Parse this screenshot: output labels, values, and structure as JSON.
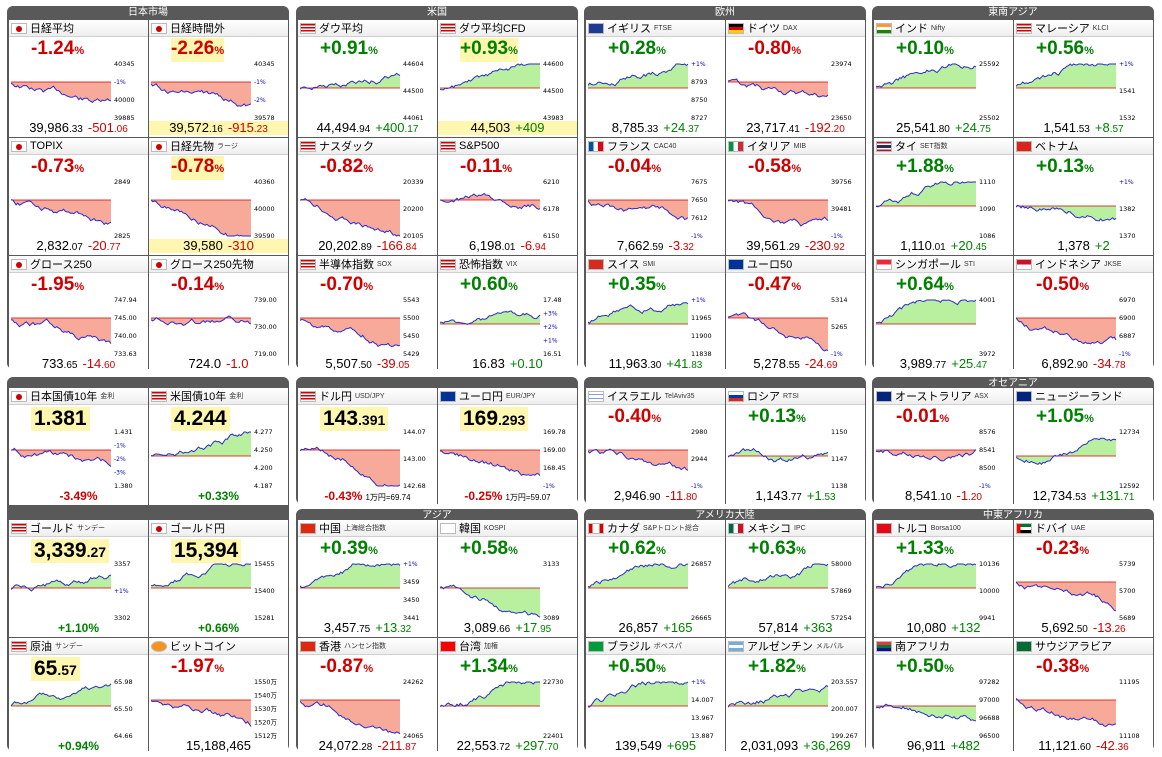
{
  "groups": [
    "日本市場",
    "米国",
    "欧州",
    "東南アジア",
    "オセアニア",
    "アジア",
    "アメリカ大陸",
    "中東アフリカ"
  ],
  "colors": {
    "up": "#008000",
    "down": "#d10000",
    "frame": "#595959",
    "area_up": "#b8f0a0",
    "area_down": "#f7a99a",
    "line": "#2a2ad0"
  },
  "cells": [
    {
      "name": "日経平均",
      "sub": "",
      "flag": "jp",
      "pct": "-1.24",
      "price_main": "39,986",
      "price_dec": ".33",
      "change_main": "-501",
      "change_dec": ".06",
      "dir": "down",
      "ticks": [
        "40345",
        "-1%",
        "40000",
        "39885"
      ],
      "trend": "down",
      "hl": false
    },
    {
      "name": "日経時間外",
      "sub": "",
      "flag": "jp",
      "pct": "-2.26",
      "price_main": "39,572",
      "price_dec": ".16",
      "change_main": "-915",
      "change_dec": ".23",
      "dir": "down",
      "ticks": [
        "40345",
        "-1%",
        "-2%",
        "39578"
      ],
      "trend": "down",
      "hl": true
    },
    {
      "name": "ダウ平均",
      "sub": "",
      "flag": "us",
      "pct": "+0.91",
      "price_main": "44,494",
      "price_dec": ".94",
      "change_main": "+400",
      "change_dec": ".17",
      "dir": "up",
      "ticks": [
        "44604",
        "44500",
        "44061"
      ],
      "trend": "up",
      "hl": false
    },
    {
      "name": "ダウ平均CFD",
      "sub": "",
      "flag": "us",
      "pct": "+0.93",
      "price_main": "44,503",
      "price_dec": "",
      "change_main": "+409",
      "change_dec": "",
      "dir": "up",
      "ticks": [
        "44600",
        "44500",
        "43983"
      ],
      "trend": "up",
      "hl": true
    },
    {
      "name": "イギリス",
      "sub": "FTSE",
      "flag": "uk",
      "pct": "+0.28",
      "price_main": "8,785",
      "price_dec": ".33",
      "change_main": "+24",
      "change_dec": ".37",
      "dir": "up",
      "ticks": [
        "+1%",
        "8793",
        "8750",
        "8727"
      ],
      "trend": "up",
      "hl": false
    },
    {
      "name": "ドイツ",
      "sub": "DAX",
      "flag": "de",
      "pct": "-0.80",
      "price_main": "23,717",
      "price_dec": ".41",
      "change_main": "-192",
      "change_dec": ".20",
      "dir": "down",
      "ticks": [
        "23974",
        "23650"
      ],
      "trend": "down",
      "hl": false
    },
    {
      "name": "インド",
      "sub": "Nifty",
      "flag": "in",
      "pct": "+0.10",
      "price_main": "25,541",
      "price_dec": ".80",
      "change_main": "+24",
      "change_dec": ".75",
      "dir": "up",
      "ticks": [
        "25592",
        "25502"
      ],
      "trend": "up",
      "hl": false
    },
    {
      "name": "マレーシア",
      "sub": "KLCI",
      "flag": "my",
      "pct": "+0.56",
      "price_main": "1,541",
      "price_dec": ".53",
      "change_main": "+8",
      "change_dec": ".57",
      "dir": "up",
      "ticks": [
        "+1%",
        "1541",
        "1532"
      ],
      "trend": "up",
      "hl": false
    },
    {
      "name": "TOPIX",
      "sub": "",
      "flag": "jp",
      "pct": "-0.73",
      "price_main": "2,832",
      "price_dec": ".07",
      "change_main": "-20",
      "change_dec": ".77",
      "dir": "down",
      "ticks": [
        "2849",
        "2825"
      ],
      "trend": "down",
      "hl": false
    },
    {
      "name": "日経先物",
      "sub": "ラージ",
      "flag": "jp",
      "pct": "-0.78",
      "price_main": "39,580",
      "price_dec": "",
      "change_main": "-310",
      "change_dec": "",
      "dir": "down",
      "ticks": [
        "40360",
        "40000",
        "39590"
      ],
      "trend": "down",
      "hl": true
    },
    {
      "name": "ナスダック",
      "sub": "",
      "flag": "us",
      "pct": "-0.82",
      "price_main": "20,202",
      "price_dec": ".89",
      "change_main": "-166",
      "change_dec": ".84",
      "dir": "down",
      "ticks": [
        "20339",
        "20200",
        "20105"
      ],
      "trend": "down",
      "hl": false
    },
    {
      "name": "S&P500",
      "sub": "",
      "flag": "us",
      "pct": "-0.11",
      "price_main": "6,198",
      "price_dec": ".01",
      "change_main": "-6",
      "change_dec": ".94",
      "dir": "down",
      "ticks": [
        "6210",
        "6178",
        "6150"
      ],
      "trend": "flat",
      "hl": false
    },
    {
      "name": "フランス",
      "sub": "CAC40",
      "flag": "fr",
      "pct": "-0.04",
      "price_main": "7,662",
      "price_dec": ".59",
      "change_main": "-3",
      "change_dec": ".32",
      "dir": "down",
      "ticks": [
        "7675",
        "7650",
        "7612",
        "-1%"
      ],
      "trend": "down",
      "hl": false
    },
    {
      "name": "イタリア",
      "sub": "MIB",
      "flag": "it",
      "pct": "-0.58",
      "price_main": "39,561",
      "price_dec": ".29",
      "change_main": "-230",
      "change_dec": ".92",
      "dir": "down",
      "ticks": [
        "39756",
        "39481",
        "-1%"
      ],
      "trend": "down",
      "hl": false
    },
    {
      "name": "タイ",
      "sub": "SET指数",
      "flag": "th",
      "pct": "+1.88",
      "price_main": "1,110",
      "price_dec": ".01",
      "change_main": "+20",
      "change_dec": ".45",
      "dir": "up",
      "ticks": [
        "1110",
        "1090",
        "1086"
      ],
      "trend": "up",
      "hl": false
    },
    {
      "name": "ベトナム",
      "sub": "",
      "flag": "vn",
      "pct": "+0.13",
      "price_main": "1,378",
      "price_dec": "",
      "change_main": "+2",
      "change_dec": "",
      "dir": "up",
      "ticks": [
        "+1%",
        "1382",
        "1370"
      ],
      "trend": "flat",
      "hl": false
    },
    {
      "name": "グロース250",
      "sub": "",
      "flag": "jp",
      "pct": "-1.95",
      "price_main": "733",
      "price_dec": ".65",
      "change_main": "-14",
      "change_dec": ".60",
      "dir": "down",
      "ticks": [
        "747.94",
        "745.00",
        "740.00",
        "733.63"
      ],
      "trend": "down",
      "hl": false
    },
    {
      "name": "グロース250先物",
      "sub": "",
      "flag": "jp",
      "pct": "-0.14",
      "price_main": "724.0",
      "price_dec": "",
      "change_main": "-1.0",
      "change_dec": "",
      "dir": "down",
      "ticks": [
        "739.00",
        "730.00",
        "719.00"
      ],
      "trend": "flat",
      "hl": false
    },
    {
      "name": "半導体指数",
      "sub": "SOX",
      "flag": "us",
      "pct": "-0.70",
      "price_main": "5,507",
      "price_dec": ".50",
      "change_main": "-39",
      "change_dec": ".05",
      "dir": "down",
      "ticks": [
        "5543",
        "5500",
        "5450",
        "5429"
      ],
      "trend": "down",
      "hl": false
    },
    {
      "name": "恐怖指数",
      "sub": "VIX",
      "flag": "us",
      "pct": "+0.60",
      "price_main": "16.83",
      "price_dec": "",
      "change_main": "+0.10",
      "change_dec": "",
      "dir": "up",
      "ticks": [
        "17.48",
        "+3%",
        "+2%",
        "+1%",
        "16.51"
      ],
      "trend": "flat",
      "hl": false
    },
    {
      "name": "スイス",
      "sub": "SMI",
      "flag": "ch",
      "pct": "+0.35",
      "price_main": "11,963",
      "price_dec": ".30",
      "change_main": "+41",
      "change_dec": ".83",
      "dir": "up",
      "ticks": [
        "+1%",
        "11965",
        "11900",
        "11838"
      ],
      "trend": "up",
      "hl": false
    },
    {
      "name": "ユーロ50",
      "sub": "",
      "flag": "eu",
      "pct": "-0.47",
      "price_main": "5,278",
      "price_dec": ".55",
      "change_main": "-24",
      "change_dec": ".69",
      "dir": "down",
      "ticks": [
        "5314",
        "5265",
        "-1%"
      ],
      "trend": "down",
      "hl": false
    },
    {
      "name": "シンガポール",
      "sub": "STI",
      "flag": "sg",
      "pct": "+0.64",
      "price_main": "3,989",
      "price_dec": ".77",
      "change_main": "+25",
      "change_dec": ".47",
      "dir": "up",
      "ticks": [
        "4001",
        "3972"
      ],
      "trend": "up",
      "hl": false
    },
    {
      "name": "インドネシア",
      "sub": "JKSE",
      "flag": "id",
      "pct": "-0.50",
      "price_main": "6,892",
      "price_dec": ".90",
      "change_main": "-34",
      "change_dec": ".78",
      "dir": "down",
      "ticks": [
        "6970",
        "6900",
        "6887",
        "-1%"
      ],
      "trend": "down",
      "hl": false
    },
    {
      "name": "日本国債10年",
      "sub": "金利",
      "flag": "jp",
      "kind": "rate",
      "big": "1.381",
      "big_dec": "",
      "foot": "-3.49%",
      "foot_sub": "",
      "dir": "down",
      "ticks": [
        "1.431",
        "-1%",
        "-2%",
        "-3%",
        "1.380"
      ],
      "trend": "down"
    },
    {
      "name": "米国債10年",
      "sub": "金利",
      "flag": "us",
      "kind": "rate",
      "big": "4.244",
      "big_dec": "",
      "foot": "+0.33%",
      "foot_sub": "",
      "dir": "up",
      "ticks": [
        "4.277",
        "4.250",
        "4.200",
        "4.187"
      ],
      "trend": "up"
    },
    {
      "name": "ドル円",
      "sub": "USD/JPY",
      "flag": "us",
      "kind": "rate",
      "big": "143",
      "big_dec": ".391",
      "foot": "-0.43%",
      "foot_sub": "1万円=69.74",
      "dir": "down",
      "ticks": [
        "144.07",
        "143.00",
        "142.68"
      ],
      "trend": "down"
    },
    {
      "name": "ユーロ円",
      "sub": "EUR/JPY",
      "flag": "eu",
      "kind": "rate",
      "big": "169",
      "big_dec": ".293",
      "foot": "-0.25%",
      "foot_sub": "1万円=59.07",
      "dir": "down",
      "ticks": [
        "169.78",
        "169.00",
        "168.45",
        "-1%"
      ],
      "trend": "down"
    },
    {
      "name": "イスラエル",
      "sub": "TelAviv35",
      "flag": "il",
      "pct": "-0.40",
      "price_main": "2,946",
      "price_dec": ".90",
      "change_main": "-11",
      "change_dec": ".80",
      "dir": "down",
      "ticks": [
        "2980",
        "2944",
        "-1%"
      ],
      "trend": "down",
      "hl": false
    },
    {
      "name": "ロシア",
      "sub": "RTSI",
      "flag": "ru",
      "pct": "+0.13",
      "price_main": "1,143",
      "price_dec": ".77",
      "change_main": "+1",
      "change_dec": ".53",
      "dir": "up",
      "ticks": [
        "1150",
        "1147",
        "1138"
      ],
      "trend": "flat",
      "hl": false
    },
    {
      "name": "オーストラリア",
      "sub": "ASX",
      "flag": "au",
      "pct": "-0.01",
      "price_main": "8,541",
      "price_dec": ".10",
      "change_main": "-1",
      "change_dec": ".20",
      "dir": "down",
      "ticks": [
        "8576",
        "8541",
        "8500",
        "-1%"
      ],
      "trend": "flat",
      "hl": false
    },
    {
      "name": "ニュージーランド",
      "sub": "",
      "flag": "nz",
      "pct": "+1.05",
      "price_main": "12,734",
      "price_dec": ".53",
      "change_main": "+131",
      "change_dec": ".71",
      "dir": "up",
      "ticks": [
        "12734",
        "12592"
      ],
      "trend": "up",
      "hl": false
    },
    {
      "name": "ゴールド",
      "sub": "サンデー",
      "flag": "us",
      "kind": "rate",
      "big": "3,339",
      "big_dec": ".27",
      "foot": "+1.10%",
      "foot_sub": "",
      "dir": "up",
      "ticks": [
        "3357",
        "+1%",
        "3302"
      ],
      "trend": "up"
    },
    {
      "name": "ゴールド円",
      "sub": "",
      "flag": "jp",
      "kind": "rate",
      "big": "15,394",
      "big_dec": "",
      "foot": "+0.66%",
      "foot_sub": "",
      "dir": "up",
      "ticks": [
        "15455",
        "15400",
        "15281"
      ],
      "trend": "up"
    },
    {
      "name": "中国",
      "sub": "上海総合指数",
      "flag": "cn",
      "pct": "+0.39",
      "price_main": "3,457",
      "price_dec": ".75",
      "change_main": "+13",
      "change_dec": ".32",
      "dir": "up",
      "ticks": [
        "+1%",
        "3459",
        "3450",
        "3441"
      ],
      "trend": "up",
      "hl": false
    },
    {
      "name": "韓国",
      "sub": "KOSPI",
      "flag": "kr",
      "pct": "+0.58",
      "price_main": "3,089",
      "price_dec": ".66",
      "change_main": "+17",
      "change_dec": ".95",
      "dir": "up",
      "ticks": [
        "3133",
        "3089"
      ],
      "trend": "down",
      "hl": false
    },
    {
      "name": "カナダ",
      "sub": "S&Pトロント総合",
      "flag": "ca",
      "pct": "+0.62",
      "price_main": "26,857",
      "price_dec": "",
      "change_main": "+165",
      "change_dec": "",
      "dir": "up",
      "ticks": [
        "26857",
        "26665"
      ],
      "trend": "up",
      "hl": false
    },
    {
      "name": "メキシコ",
      "sub": "IPC",
      "flag": "mx",
      "pct": "+0.63",
      "price_main": "57,814",
      "price_dec": "",
      "change_main": "+363",
      "change_dec": "",
      "dir": "up",
      "ticks": [
        "58000",
        "57869",
        "57254"
      ],
      "trend": "up",
      "hl": false
    },
    {
      "name": "トルコ",
      "sub": "Borsa100",
      "flag": "tr",
      "pct": "+1.33",
      "price_main": "10,080",
      "price_dec": "",
      "change_main": "+132",
      "change_dec": "",
      "dir": "up",
      "ticks": [
        "10136",
        "10000",
        "9941"
      ],
      "trend": "up",
      "hl": false
    },
    {
      "name": "ドバイ",
      "sub": "UAE",
      "flag": "ae",
      "pct": "-0.23",
      "price_main": "5,692",
      "price_dec": ".50",
      "change_main": "-13",
      "change_dec": ".26",
      "dir": "down",
      "ticks": [
        "5739",
        "5700",
        "5689"
      ],
      "trend": "down",
      "hl": false
    },
    {
      "name": "原油",
      "sub": "サンデー",
      "flag": "us",
      "kind": "rate",
      "big": "65",
      "big_dec": ".57",
      "foot": "+0.94%",
      "foot_sub": "",
      "dir": "up",
      "ticks": [
        "65.98",
        "65.50",
        "64.66"
      ],
      "trend": "up"
    },
    {
      "name": "ビットコイン",
      "sub": "",
      "flag": "bt",
      "pct": "-1.97",
      "price_main": "15,188,465",
      "price_dec": "",
      "change_main": "",
      "change_dec": "",
      "dir": "down",
      "ticks": [
        "1550万",
        "1540万",
        "1530万",
        "1520万",
        "1512万"
      ],
      "trend": "down",
      "hl": false
    },
    {
      "name": "香港",
      "sub": "ハンセン指数",
      "flag": "hk",
      "pct": "-0.87",
      "price_main": "24,072",
      "price_dec": ".28",
      "change_main": "-211",
      "change_dec": ".87",
      "dir": "down",
      "ticks": [
        "24262",
        "24065"
      ],
      "trend": "down",
      "hl": false
    },
    {
      "name": "台湾",
      "sub": "加権",
      "flag": "tw",
      "pct": "+1.34",
      "price_main": "22,553",
      "price_dec": ".72",
      "change_main": "+297",
      "change_dec": ".70",
      "dir": "up",
      "ticks": [
        "22730",
        "22401"
      ],
      "trend": "up",
      "hl": false
    },
    {
      "name": "ブラジル",
      "sub": "ボベスパ",
      "flag": "br",
      "pct": "+0.50",
      "price_main": "139,549",
      "price_dec": "",
      "change_main": "+695",
      "change_dec": "",
      "dir": "up",
      "ticks": [
        "+1%",
        "14.007",
        "13.967",
        "13.887"
      ],
      "trend": "up",
      "hl": false
    },
    {
      "name": "アルゼンチン",
      "sub": "メルバル",
      "flag": "ar",
      "pct": "+1.82",
      "price_main": "2,031,093",
      "price_dec": "",
      "change_main": "+36,269",
      "change_dec": "",
      "dir": "up",
      "ticks": [
        "203.557",
        "200.007",
        "199.267"
      ],
      "trend": "up",
      "hl": false
    },
    {
      "name": "南アフリカ",
      "sub": "",
      "flag": "za",
      "pct": "+0.50",
      "price_main": "96,911",
      "price_dec": "",
      "change_main": "+482",
      "change_dec": "",
      "dir": "up",
      "ticks": [
        "97282",
        "97000",
        "96688",
        "96500"
      ],
      "trend": "flat",
      "hl": false
    },
    {
      "name": "サウジアラビア",
      "sub": "",
      "flag": "sa",
      "pct": "-0.38",
      "price_main": "11,121",
      "price_dec": ".60",
      "change_main": "-42",
      "change_dec": ".36",
      "dir": "down",
      "ticks": [
        "11195",
        "11108"
      ],
      "trend": "down",
      "hl": false
    }
  ]
}
